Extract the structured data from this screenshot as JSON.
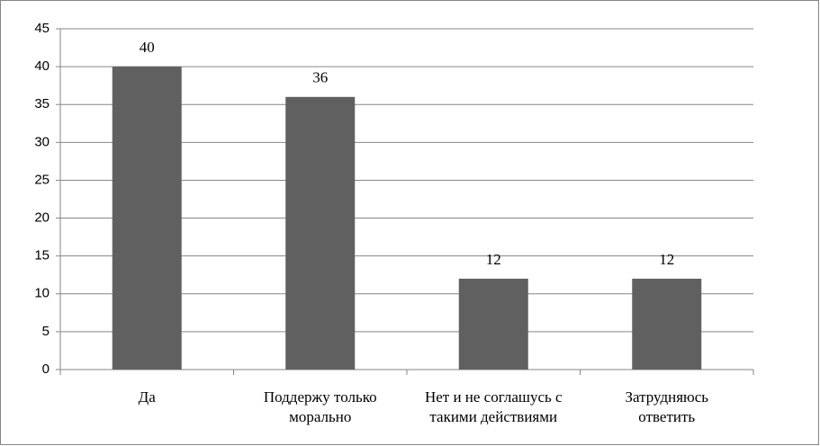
{
  "chart_data": {
    "type": "bar",
    "categories": [
      "Да",
      "Поддержу только\nморально",
      "Нет и не соглашусь с\nтакими действиями",
      "Затрудняюсь\nответить"
    ],
    "values": [
      40,
      36,
      12,
      12
    ],
    "color": "#606060",
    "ylim": [
      0,
      45
    ],
    "yticks": [
      0,
      5,
      10,
      15,
      20,
      25,
      30,
      35,
      40,
      45
    ],
    "grid": true
  }
}
